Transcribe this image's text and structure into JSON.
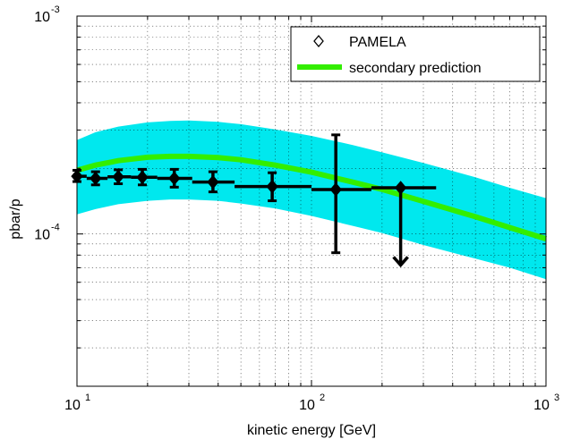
{
  "chart_data": {
    "type": "scatter",
    "title": "",
    "xlabel": "kinetic energy [GeV]",
    "ylabel": "pbar/p",
    "x_scale": "log",
    "y_scale": "log",
    "xlim": [
      10,
      1000
    ],
    "ylim": [
      2e-05,
      0.001
    ],
    "grid": true,
    "legend_position": "top-right",
    "x_ticks": [
      {
        "value": 10,
        "base": "10",
        "exp": "1"
      },
      {
        "value": 100,
        "base": "10",
        "exp": "2"
      },
      {
        "value": 1000,
        "base": "10",
        "exp": "3"
      }
    ],
    "y_ticks": [
      {
        "value": 0.0001,
        "base": "10",
        "exp": "-4"
      },
      {
        "value": 0.001,
        "base": "10",
        "exp": "-3"
      }
    ],
    "series": [
      {
        "name": "PAMELA",
        "marker": "diamond",
        "color": "#000000",
        "points": [
          {
            "x": 10.0,
            "y": 0.000184,
            "xlo": 9.8,
            "xhi": 11.0,
            "ylo": 0.000174,
            "yhi": 0.000196
          },
          {
            "x": 12.0,
            "y": 0.00018,
            "xlo": 11.0,
            "xhi": 13.5,
            "ylo": 0.000168,
            "yhi": 0.000193
          },
          {
            "x": 15.0,
            "y": 0.000183,
            "xlo": 13.5,
            "xhi": 17.0,
            "ylo": 0.00017,
            "yhi": 0.000197
          },
          {
            "x": 19.0,
            "y": 0.000182,
            "xlo": 17.0,
            "xhi": 22.0,
            "ylo": 0.000168,
            "yhi": 0.000198
          },
          {
            "x": 26.0,
            "y": 0.00018,
            "xlo": 22.0,
            "xhi": 31.0,
            "ylo": 0.000164,
            "yhi": 0.000198
          },
          {
            "x": 38.0,
            "y": 0.000173,
            "xlo": 31.0,
            "xhi": 47.0,
            "ylo": 0.000156,
            "yhi": 0.000193
          },
          {
            "x": 68.0,
            "y": 0.000165,
            "xlo": 47.0,
            "xhi": 100.0,
            "ylo": 0.000142,
            "yhi": 0.000191
          },
          {
            "x": 127.0,
            "y": 0.00016,
            "xlo": 100.0,
            "xhi": 180.0,
            "ylo": 8.2e-05,
            "yhi": 0.000285
          },
          {
            "x": 240.0,
            "y": 0.000163,
            "xlo": 180.0,
            "xhi": 340.0,
            "upper_limit": true,
            "arrow_to": 7.2e-05
          }
        ]
      },
      {
        "name": "secondary prediction",
        "type": "line",
        "color": "#33ee00",
        "x": [
          10,
          12,
          15,
          20,
          25,
          30,
          40,
          50,
          70,
          100,
          150,
          200,
          300,
          500,
          700,
          1000
        ],
        "y": [
          0.000196,
          0.000207,
          0.000217,
          0.000225,
          0.000227,
          0.000227,
          0.000224,
          0.000219,
          0.000207,
          0.000192,
          0.000173,
          0.00016,
          0.000141,
          0.00012,
          0.000107,
          9.5e-05
        ]
      },
      {
        "type": "band",
        "color": "#00e8ee",
        "x": [
          10,
          12,
          15,
          20,
          25,
          30,
          40,
          50,
          70,
          100,
          150,
          200,
          300,
          500,
          700,
          1000
        ],
        "lower": [
          0.000123,
          0.00013,
          0.000137,
          0.000142,
          0.000144,
          0.000144,
          0.000142,
          0.000138,
          0.000131,
          0.000121,
          0.000109,
          0.000101,
          8.9e-05,
          7.7e-05,
          7e-05,
          6.2e-05
        ],
        "upper": [
          0.00027,
          0.000293,
          0.000311,
          0.000325,
          0.00033,
          0.000332,
          0.000327,
          0.000319,
          0.000302,
          0.000282,
          0.000256,
          0.000237,
          0.000212,
          0.000182,
          0.000163,
          0.000146
        ]
      }
    ]
  }
}
